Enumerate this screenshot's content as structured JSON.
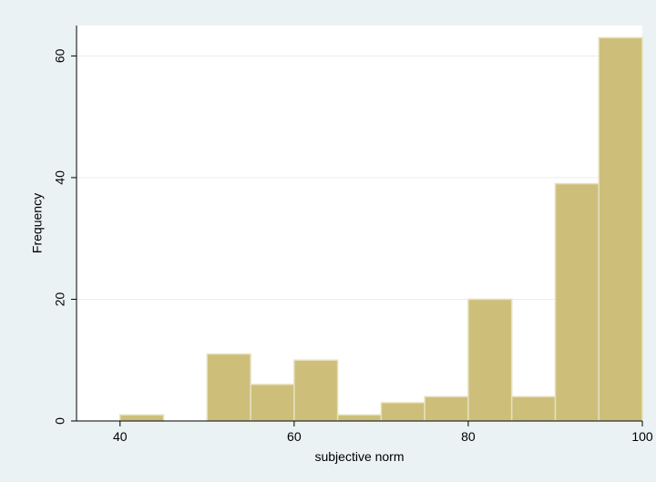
{
  "chart_data": {
    "type": "bar",
    "xlabel": "subjective norm",
    "ylabel": "Frequency",
    "xlim": [
      35,
      100
    ],
    "ylim": [
      0,
      65
    ],
    "xticks": [
      40,
      60,
      80,
      100
    ],
    "yticks": [
      0,
      20,
      40,
      60
    ],
    "grid": true,
    "bins": [
      {
        "start": 40,
        "end": 45,
        "value": 1
      },
      {
        "start": 45,
        "end": 50,
        "value": 0
      },
      {
        "start": 50,
        "end": 55,
        "value": 11
      },
      {
        "start": 55,
        "end": 60,
        "value": 6
      },
      {
        "start": 60,
        "end": 65,
        "value": 10
      },
      {
        "start": 65,
        "end": 70,
        "value": 1
      },
      {
        "start": 70,
        "end": 75,
        "value": 3
      },
      {
        "start": 75,
        "end": 80,
        "value": 4
      },
      {
        "start": 80,
        "end": 85,
        "value": 20
      },
      {
        "start": 85,
        "end": 90,
        "value": 4
      },
      {
        "start": 90,
        "end": 95,
        "value": 39
      },
      {
        "start": 95,
        "end": 100,
        "value": 63
      }
    ],
    "colors": {
      "background": "#eaf2f3",
      "plot_area": "#ffffff",
      "bar_fill": "#cdbf7a",
      "bar_stroke": "#e7e0bf",
      "grid": "#e8eeee",
      "axis": "#000000"
    }
  }
}
